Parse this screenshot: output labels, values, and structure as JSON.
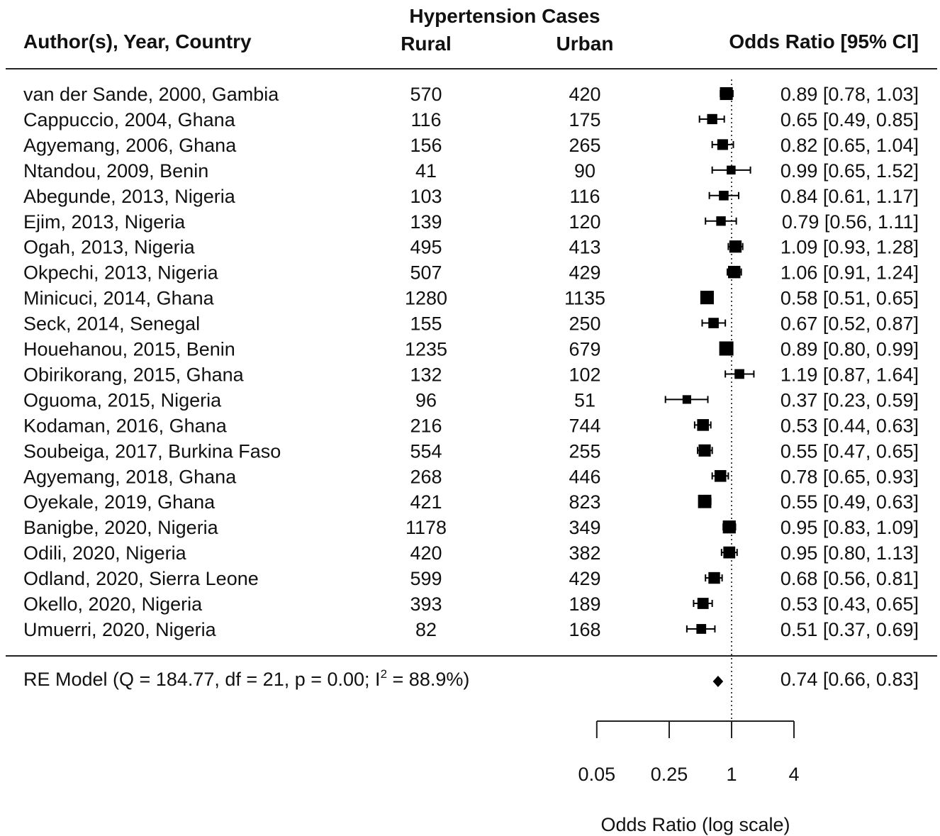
{
  "headers": {
    "group_label": "Hypertension Cases",
    "study": "Author(s), Year, Country",
    "rural": "Rural",
    "urban": "Urban",
    "effect": "Odds Ratio [95% CI]"
  },
  "chart_data": {
    "type": "forest",
    "scale": "log",
    "reference_line": 1,
    "xlabel": "Odds Ratio (log scale)",
    "xticks": [
      0.05,
      0.25,
      1,
      4
    ],
    "xtick_labels": [
      "0.05",
      "0.25",
      "1",
      "4"
    ],
    "studies": [
      {
        "label": "van der Sande, 2000, Gambia",
        "rural": "570",
        "urban": "420",
        "or": 0.89,
        "lo": 0.78,
        "hi": 1.03,
        "ci_text": "0.89 [0.78, 1.03]"
      },
      {
        "label": "Cappuccio, 2004, Ghana",
        "rural": "116",
        "urban": "175",
        "or": 0.65,
        "lo": 0.49,
        "hi": 0.85,
        "ci_text": "0.65 [0.49, 0.85]"
      },
      {
        "label": "Agyemang, 2006, Ghana",
        "rural": "156",
        "urban": "265",
        "or": 0.82,
        "lo": 0.65,
        "hi": 1.04,
        "ci_text": "0.82 [0.65, 1.04]"
      },
      {
        "label": "Ntandou, 2009, Benin",
        "rural": "41",
        "urban": "90",
        "or": 0.99,
        "lo": 0.65,
        "hi": 1.52,
        "ci_text": "0.99 [0.65, 1.52]"
      },
      {
        "label": "Abegunde, 2013, Nigeria",
        "rural": "103",
        "urban": "116",
        "or": 0.84,
        "lo": 0.61,
        "hi": 1.17,
        "ci_text": "0.84 [0.61, 1.17]"
      },
      {
        "label": "Ejim, 2013, Nigeria",
        "rural": "139",
        "urban": "120",
        "or": 0.79,
        "lo": 0.56,
        "hi": 1.11,
        "ci_text": "0.79 [0.56, 1.11]"
      },
      {
        "label": "Ogah, 2013, Nigeria",
        "rural": "495",
        "urban": "413",
        "or": 1.09,
        "lo": 0.93,
        "hi": 1.28,
        "ci_text": "1.09 [0.93, 1.28]"
      },
      {
        "label": "Okpechi, 2013, Nigeria",
        "rural": "507",
        "urban": "429",
        "or": 1.06,
        "lo": 0.91,
        "hi": 1.24,
        "ci_text": "1.06 [0.91, 1.24]"
      },
      {
        "label": "Minicuci, 2014, Ghana",
        "rural": "1280",
        "urban": "1135",
        "or": 0.58,
        "lo": 0.51,
        "hi": 0.65,
        "ci_text": "0.58 [0.51, 0.65]"
      },
      {
        "label": "Seck, 2014, Senegal",
        "rural": "155",
        "urban": "250",
        "or": 0.67,
        "lo": 0.52,
        "hi": 0.87,
        "ci_text": "0.67 [0.52, 0.87]"
      },
      {
        "label": "Houehanou, 2015, Benin",
        "rural": "1235",
        "urban": "679",
        "or": 0.89,
        "lo": 0.8,
        "hi": 0.99,
        "ci_text": "0.89 [0.80, 0.99]"
      },
      {
        "label": "Obirikorang, 2015, Ghana",
        "rural": "132",
        "urban": "102",
        "or": 1.19,
        "lo": 0.87,
        "hi": 1.64,
        "ci_text": "1.19 [0.87, 1.64]"
      },
      {
        "label": "Oguoma, 2015, Nigeria",
        "rural": "96",
        "urban": "51",
        "or": 0.37,
        "lo": 0.23,
        "hi": 0.59,
        "ci_text": "0.37 [0.23, 0.59]"
      },
      {
        "label": "Kodaman, 2016, Ghana",
        "rural": "216",
        "urban": "744",
        "or": 0.53,
        "lo": 0.44,
        "hi": 0.63,
        "ci_text": "0.53 [0.44, 0.63]"
      },
      {
        "label": "Soubeiga, 2017, Burkina Faso",
        "rural": "554",
        "urban": "255",
        "or": 0.55,
        "lo": 0.47,
        "hi": 0.65,
        "ci_text": "0.55 [0.47, 0.65]"
      },
      {
        "label": "Agyemang, 2018, Ghana",
        "rural": "268",
        "urban": "446",
        "or": 0.78,
        "lo": 0.65,
        "hi": 0.93,
        "ci_text": "0.78 [0.65, 0.93]"
      },
      {
        "label": "Oyekale, 2019, Ghana",
        "rural": "421",
        "urban": "823",
        "or": 0.55,
        "lo": 0.49,
        "hi": 0.63,
        "ci_text": "0.55 [0.49, 0.63]"
      },
      {
        "label": "Banigbe, 2020, Nigeria",
        "rural": "1178",
        "urban": "349",
        "or": 0.95,
        "lo": 0.83,
        "hi": 1.09,
        "ci_text": "0.95 [0.83, 1.09]"
      },
      {
        "label": "Odili, 2020, Nigeria",
        "rural": "420",
        "urban": "382",
        "or": 0.95,
        "lo": 0.8,
        "hi": 1.13,
        "ci_text": "0.95 [0.80, 1.13]"
      },
      {
        "label": "Odland, 2020, Sierra Leone",
        "rural": "599",
        "urban": "429",
        "or": 0.68,
        "lo": 0.56,
        "hi": 0.81,
        "ci_text": "0.68 [0.56, 0.81]"
      },
      {
        "label": "Okello, 2020, Nigeria",
        "rural": "393",
        "urban": "189",
        "or": 0.53,
        "lo": 0.43,
        "hi": 0.65,
        "ci_text": "0.53 [0.43, 0.65]"
      },
      {
        "label": "Umuerri, 2020, Nigeria",
        "rural": "82",
        "urban": "168",
        "or": 0.51,
        "lo": 0.37,
        "hi": 0.69,
        "ci_text": "0.51 [0.37, 0.69]"
      }
    ],
    "summary": {
      "label_prefix": "RE Model (Q = 184.77, df = 21, p = 0.00; I",
      "label_sup": "2",
      "label_suffix": " = 88.9%)",
      "or": 0.74,
      "lo": 0.66,
      "hi": 0.83,
      "ci_text": "0.74 [0.66, 0.83]"
    }
  }
}
